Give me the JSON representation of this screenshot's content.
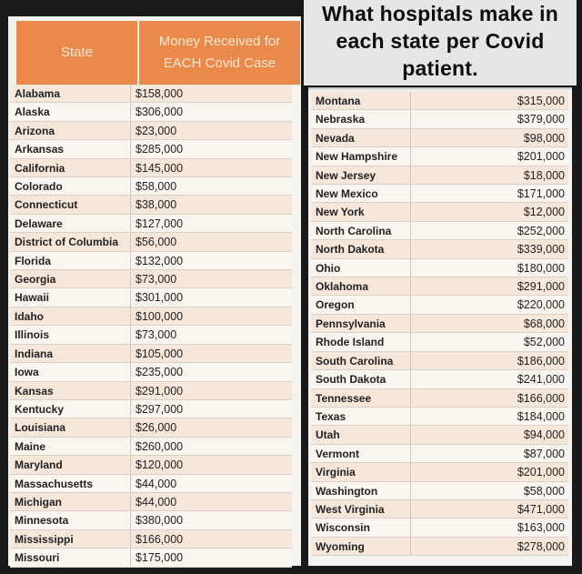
{
  "caption": {
    "lines": [
      "What hospitals make in",
      "each state per Covid",
      "patient."
    ]
  },
  "table": {
    "columns": [
      "State",
      "Money Received for EACH Covid Case"
    ],
    "header_color": "#ea8a4a",
    "left_rows": [
      [
        "Alabama",
        "$158,000"
      ],
      [
        "Alaska",
        "$306,000"
      ],
      [
        "Arizona",
        "$23,000"
      ],
      [
        "Arkansas",
        "$285,000"
      ],
      [
        "California",
        "$145,000"
      ],
      [
        "Colorado",
        "$58,000"
      ],
      [
        "Connecticut",
        "$38,000"
      ],
      [
        "Delaware",
        "$127,000"
      ],
      [
        "District of Columbia",
        "$56,000"
      ],
      [
        "Florida",
        "$132,000"
      ],
      [
        "Georgia",
        "$73,000"
      ],
      [
        "Hawaii",
        "$301,000"
      ],
      [
        "Idaho",
        "$100,000"
      ],
      [
        "Illinois",
        "$73,000"
      ],
      [
        "Indiana",
        "$105,000"
      ],
      [
        "Iowa",
        "$235,000"
      ],
      [
        "Kansas",
        "$291,000"
      ],
      [
        "Kentucky",
        "$297,000"
      ],
      [
        "Louisiana",
        "$26,000"
      ],
      [
        "Maine",
        "$260,000"
      ],
      [
        "Maryland",
        "$120,000"
      ],
      [
        "Massachusetts",
        "$44,000"
      ],
      [
        "Michigan",
        "$44,000"
      ],
      [
        "Minnesota",
        "$380,000"
      ],
      [
        "Mississippi",
        "$166,000"
      ],
      [
        "Missouri",
        "$175,000"
      ]
    ],
    "right_rows": [
      [
        "Montana",
        "$315,000"
      ],
      [
        "Nebraska",
        "$379,000"
      ],
      [
        "Nevada",
        "$98,000"
      ],
      [
        "New Hampshire",
        "$201,000"
      ],
      [
        "New Jersey",
        "$18,000"
      ],
      [
        "New Mexico",
        "$171,000"
      ],
      [
        "New York",
        "$12,000"
      ],
      [
        "North Carolina",
        "$252,000"
      ],
      [
        "North Dakota",
        "$339,000"
      ],
      [
        "Ohio",
        "$180,000"
      ],
      [
        "Oklahoma",
        "$291,000"
      ],
      [
        "Oregon",
        "$220,000"
      ],
      [
        "Pennsylvania",
        "$68,000"
      ],
      [
        "Rhode Island",
        "$52,000"
      ],
      [
        "South Carolina",
        "$186,000"
      ],
      [
        "South Dakota",
        "$241,000"
      ],
      [
        "Tennessee",
        "$166,000"
      ],
      [
        "Texas",
        "$184,000"
      ],
      [
        "Utah",
        "$94,000"
      ],
      [
        "Vermont",
        "$87,000"
      ],
      [
        "Virginia",
        "$201,000"
      ],
      [
        "Washington",
        "$58,000"
      ],
      [
        "West Virginia",
        "$471,000"
      ],
      [
        "Wisconsin",
        "$163,000"
      ],
      [
        "Wyoming",
        "$278,000"
      ]
    ]
  }
}
